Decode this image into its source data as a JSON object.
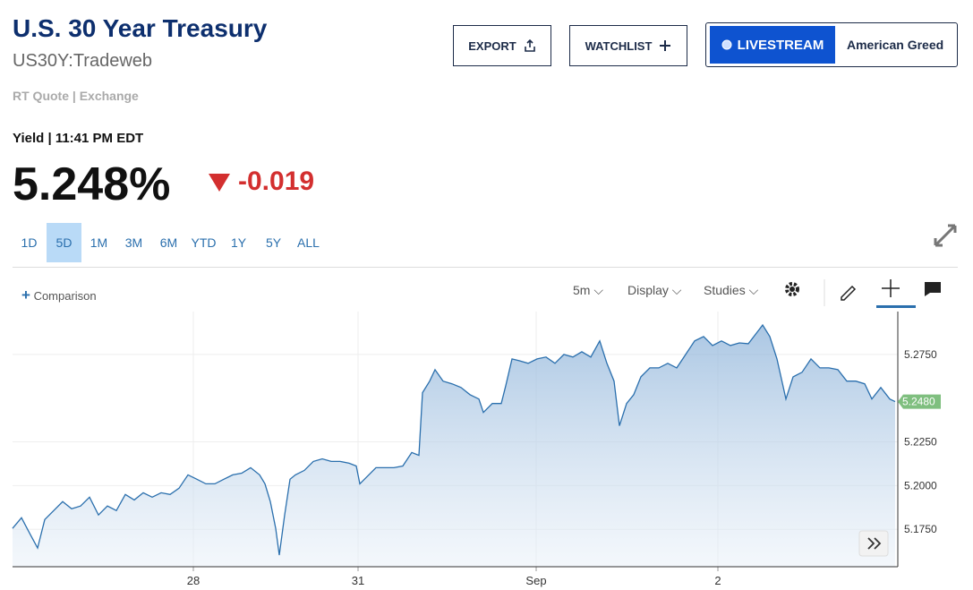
{
  "header": {
    "title": "U.S. 30 Year Treasury",
    "symbol": "US30Y:Tradeweb",
    "quote_info": "RT Quote | Exchange"
  },
  "buttons": {
    "export": "EXPORT",
    "watchlist": "WATCHLIST",
    "livestream": "LIVESTREAM",
    "show": "American Greed"
  },
  "quote": {
    "label": "Yield | 11:41 PM EDT",
    "price": "5.248%",
    "change": "-0.019"
  },
  "ranges": {
    "items": [
      "1D",
      "5D",
      "1M",
      "3M",
      "6M",
      "YTD",
      "1Y",
      "5Y",
      "ALL"
    ],
    "selected": "5D"
  },
  "toolbar": {
    "comparison": "Comparison",
    "interval": "5m",
    "display": "Display",
    "studies": "Studies"
  },
  "chart_data": {
    "type": "area",
    "color": "#2a6fad",
    "grid": true,
    "x": [
      0,
      10,
      20,
      28,
      36,
      46,
      56,
      66,
      76,
      86,
      96,
      106,
      116,
      126,
      136,
      146,
      156,
      166,
      176,
      186,
      196,
      206,
      216,
      226,
      236,
      246,
      256,
      266,
      276,
      282,
      288,
      294,
      298,
      304,
      310,
      316,
      326,
      336,
      346,
      356,
      366,
      376,
      384,
      388,
      396,
      406,
      416,
      426,
      436,
      446,
      454,
      458,
      466,
      472,
      481,
      491,
      501,
      511,
      521,
      526,
      536,
      546,
      551,
      558,
      566,
      576,
      586,
      596,
      606,
      616,
      626,
      636,
      646,
      656,
      664,
      672,
      678,
      686,
      694,
      702,
      712,
      722,
      732,
      742,
      752,
      762,
      772,
      782,
      792,
      802,
      812,
      822,
      832,
      838,
      846,
      854,
      864,
      872,
      882,
      892,
      902,
      912,
      922,
      932,
      942,
      952,
      960,
      970,
      980,
      986
    ],
    "values": [
      5.1755,
      5.1816,
      5.1719,
      5.1643,
      5.1806,
      5.1857,
      5.1908,
      5.1867,
      5.1883,
      5.1934,
      5.1832,
      5.1883,
      5.1857,
      5.1949,
      5.1918,
      5.1959,
      5.1934,
      5.1959,
      5.1949,
      5.1985,
      5.2061,
      5.2036,
      5.201,
      5.201,
      5.2036,
      5.2061,
      5.2071,
      5.2102,
      5.2061,
      5.201,
      5.1908,
      5.1755,
      5.1602,
      5.1832,
      5.2036,
      5.2061,
      5.2087,
      5.2138,
      5.2153,
      5.2138,
      5.2138,
      5.2128,
      5.2112,
      5.201,
      5.2051,
      5.2102,
      5.2102,
      5.2102,
      5.2112,
      5.2189,
      5.2173,
      5.2531,
      5.2597,
      5.2663,
      5.2597,
      5.2582,
      5.2561,
      5.252,
      5.2495,
      5.2418,
      5.2469,
      5.2469,
      5.2571,
      5.2724,
      5.2714,
      5.2699,
      5.2724,
      5.2735,
      5.2699,
      5.275,
      5.2735,
      5.2765,
      5.2735,
      5.2827,
      5.2699,
      5.2597,
      5.2342,
      5.2469,
      5.252,
      5.2622,
      5.2673,
      5.2673,
      5.2699,
      5.2673,
      5.275,
      5.2827,
      5.2852,
      5.2801,
      5.2827,
      5.2801,
      5.2816,
      5.2811,
      5.2878,
      5.2918,
      5.2852,
      5.2724,
      5.2495,
      5.2622,
      5.2648,
      5.2724,
      5.2673,
      5.2673,
      5.2663,
      5.2597,
      5.2597,
      5.2582,
      5.2495,
      5.2561,
      5.2495,
      5.248
    ],
    "current": {
      "value": 5.248,
      "label": "5.2480"
    },
    "xlim": [
      0,
      989
    ],
    "xticks": [
      {
        "value": 202,
        "label": "28"
      },
      {
        "value": 386,
        "label": "31"
      },
      {
        "value": 585,
        "label": "Sep"
      },
      {
        "value": 788,
        "label": "2"
      }
    ],
    "ylim": [
      5.1536,
      5.2995
    ],
    "yticks": [
      {
        "value": 5.175,
        "label": "5.1750"
      },
      {
        "value": 5.2,
        "label": "5.2000"
      },
      {
        "value": 5.225,
        "label": "5.2250"
      },
      {
        "value": 5.275,
        "label": "5.2750"
      }
    ]
  }
}
